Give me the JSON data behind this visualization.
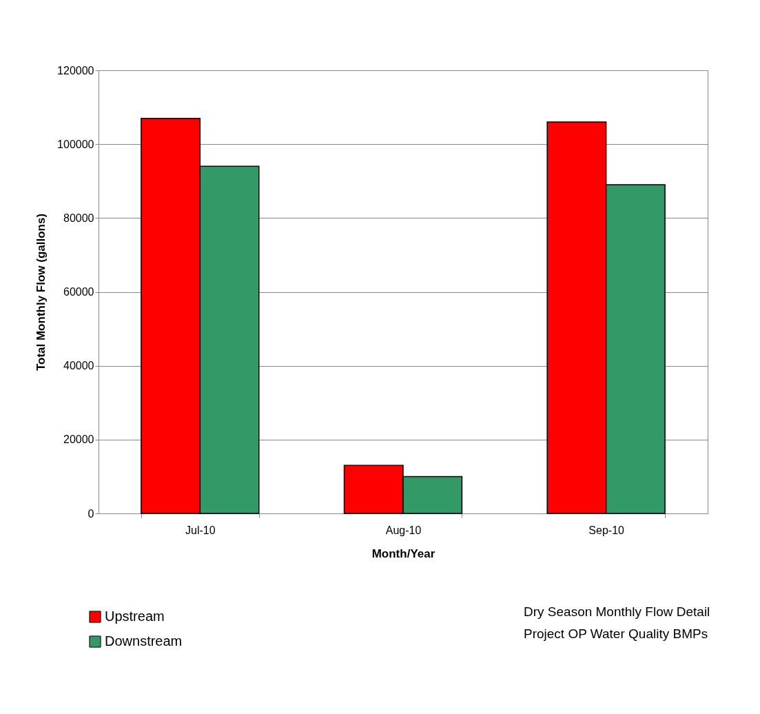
{
  "chart_data": {
    "type": "bar",
    "xlabel": "Month/Year",
    "ylabel": "Total Monthly Flow (gallons)",
    "categories": [
      "Jul-10",
      "Aug-10",
      "Sep-10"
    ],
    "series": [
      {
        "name": "Upstream",
        "color": "#ff0000",
        "values": [
          107000,
          13000,
          106000
        ]
      },
      {
        "name": "Downstream",
        "color": "#339966",
        "values": [
          94000,
          10000,
          89000
        ]
      }
    ],
    "ylim": [
      0,
      120000
    ],
    "yticks": [
      0,
      20000,
      40000,
      60000,
      80000,
      100000,
      120000
    ],
    "grid": "y",
    "legend": "bottom left",
    "annotations": [
      "Dry Season Monthly Flow Detail",
      "Project OP Water Quality BMPs"
    ]
  }
}
